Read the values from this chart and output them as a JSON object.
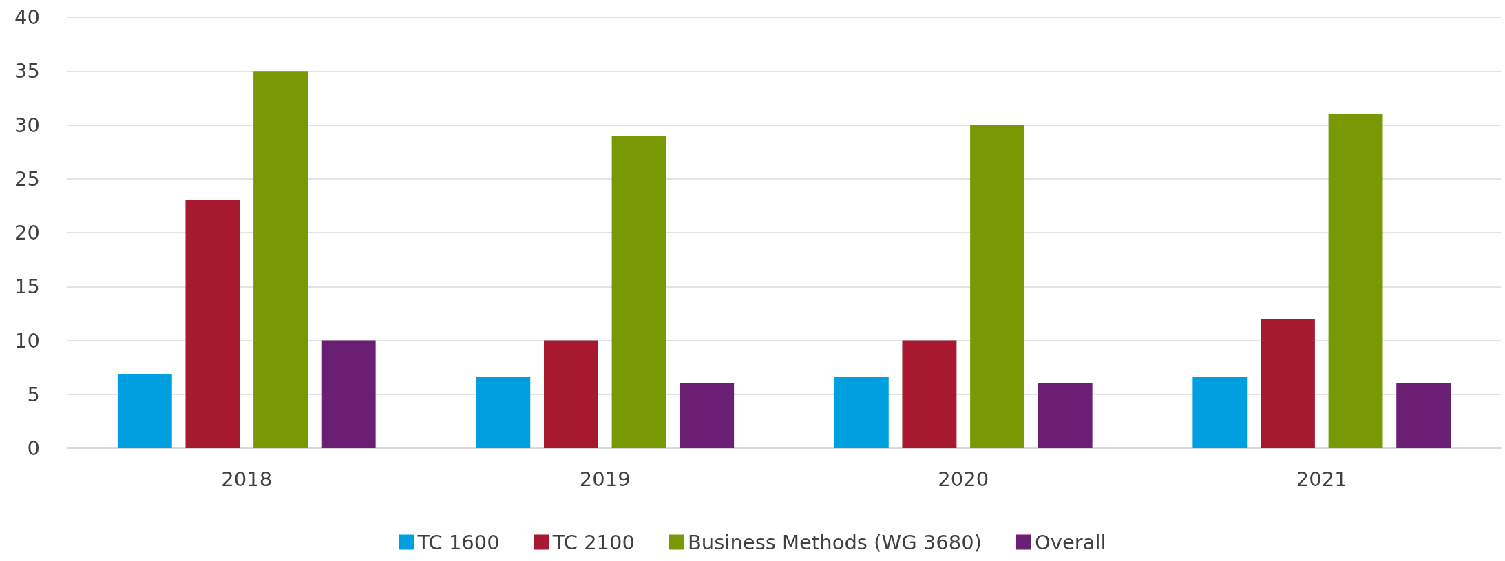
{
  "chart_data": {
    "type": "bar",
    "categories": [
      "2018",
      "2019",
      "2020",
      "2021"
    ],
    "series": [
      {
        "name": "TC 1600",
        "color": "#009fdf",
        "values": [
          6.9,
          6.6,
          6.6,
          6.6
        ]
      },
      {
        "name": "TC 2100",
        "color": "#a6192e",
        "values": [
          23,
          10,
          10,
          12
        ]
      },
      {
        "name": "Business Methods (WG 3680)",
        "color": "#789904",
        "values": [
          35,
          29,
          30,
          31
        ]
      },
      {
        "name": "Overall",
        "color": "#6a1e74",
        "values": [
          10,
          6,
          6,
          6
        ]
      }
    ],
    "ylim": [
      0,
      40
    ],
    "yticks": [
      0,
      5,
      10,
      15,
      20,
      25,
      30,
      35,
      40
    ],
    "grid": "y",
    "legend": "bottom"
  }
}
